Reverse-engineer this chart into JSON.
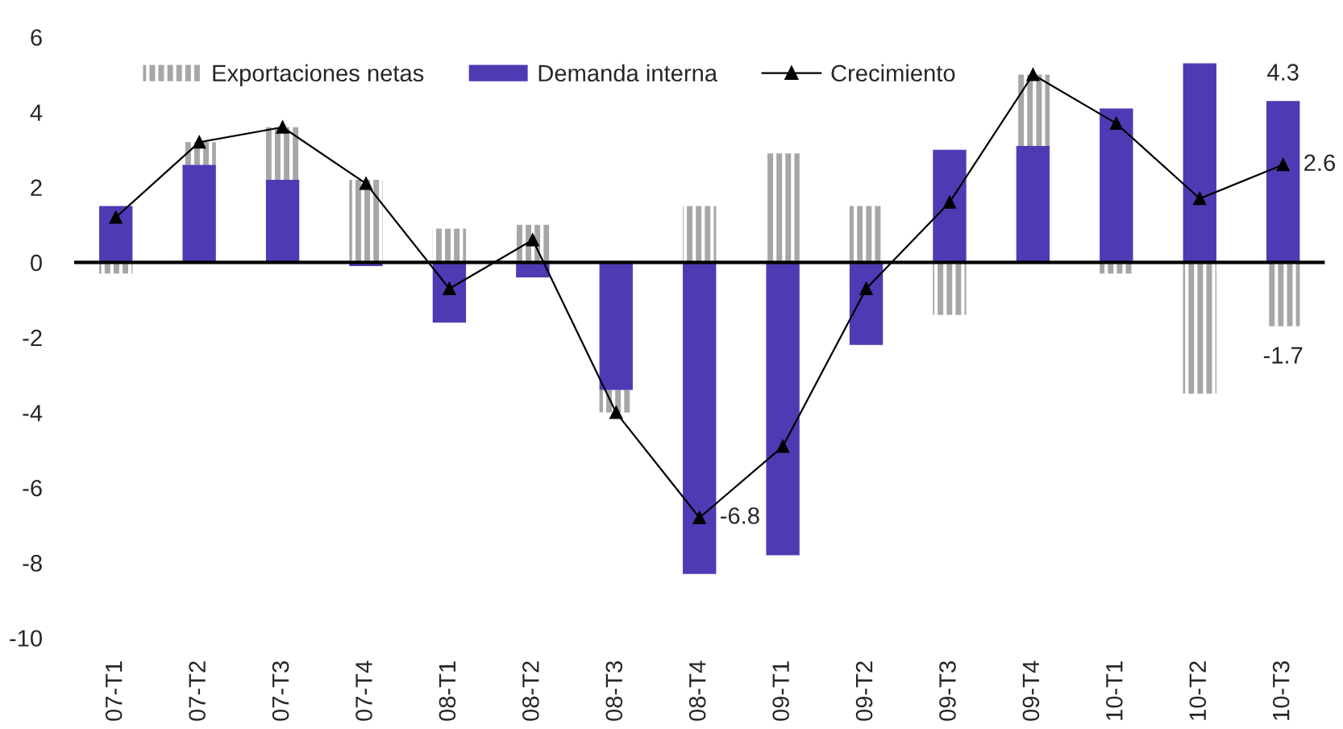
{
  "chart_data": {
    "type": "bar",
    "stacked": true,
    "categories": [
      "07-T1",
      "07-T2",
      "07-T3",
      "07-T4",
      "08-T1",
      "08-T2",
      "08-T3",
      "08-T4",
      "09-T1",
      "09-T2",
      "09-T3",
      "09-T4",
      "10-T1",
      "10-T2",
      "10-T3"
    ],
    "ylim": [
      -10,
      6
    ],
    "yticks": [
      -10,
      -8,
      -6,
      -4,
      -2,
      0,
      2,
      4,
      6
    ],
    "grid": false,
    "legend": "top",
    "marker": "triangle",
    "line_style": "solid",
    "ref_lines": [
      {
        "axis": "y",
        "value": 0,
        "color": "#000000"
      }
    ],
    "series": [
      {
        "name": "Demanda interna",
        "color": "#4f3ab4",
        "values": [
          1.5,
          2.6,
          2.2,
          -0.1,
          -1.6,
          -0.4,
          -3.4,
          -8.3,
          -7.8,
          -2.2,
          3.0,
          3.1,
          4.1,
          5.3,
          4.3
        ],
        "value_labels": [
          null,
          null,
          null,
          null,
          null,
          null,
          null,
          null,
          null,
          null,
          null,
          null,
          null,
          null,
          "4.3"
        ]
      },
      {
        "name": "Exportaciones netas",
        "color": "#a6a6a6",
        "values": [
          -0.3,
          0.6,
          1.4,
          2.2,
          0.9,
          1.0,
          -0.6,
          1.5,
          2.9,
          1.5,
          -1.4,
          1.9,
          -0.3,
          -3.5,
          -1.7
        ],
        "value_labels": [
          null,
          null,
          null,
          null,
          null,
          null,
          null,
          null,
          null,
          null,
          null,
          null,
          null,
          null,
          "-1.7"
        ]
      },
      {
        "name": "Crecimiento",
        "type": "line",
        "color": "#000000",
        "values": [
          1.2,
          3.2,
          3.6,
          2.1,
          -0.7,
          0.6,
          -4.0,
          -6.8,
          -4.9,
          -0.7,
          1.6,
          5.0,
          3.7,
          1.7,
          2.6
        ],
        "value_labels": [
          null,
          null,
          null,
          null,
          null,
          null,
          null,
          "-6.8",
          null,
          null,
          null,
          null,
          null,
          null,
          "2.6"
        ]
      }
    ]
  }
}
